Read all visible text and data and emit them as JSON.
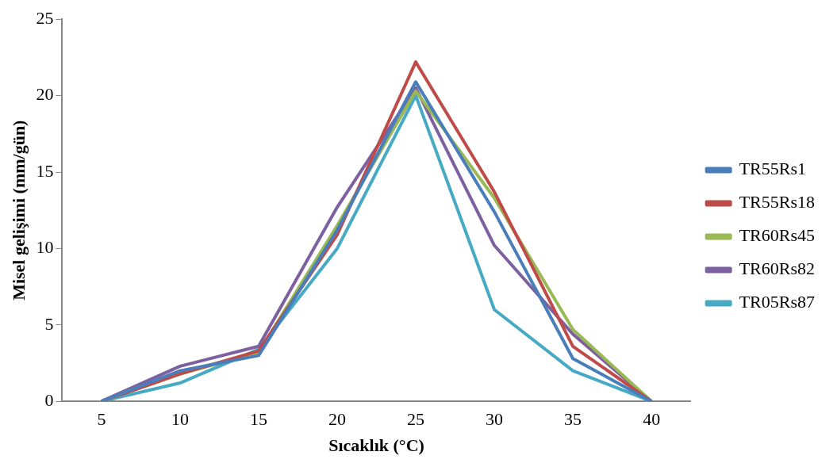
{
  "chart_data": {
    "type": "line",
    "xlabel": "Sıcaklık (°C)",
    "ylabel": "Misel gelişimi (mm/gün)",
    "categories": [
      "5",
      "10",
      "15",
      "20",
      "25",
      "30",
      "35",
      "40"
    ],
    "ylim": [
      0,
      25
    ],
    "yticks": [
      0,
      5,
      10,
      15,
      20,
      25
    ],
    "grid": false,
    "legend": "right",
    "marker": "none",
    "line_style": "solid",
    "series": [
      {
        "name": "TR55Rs1",
        "color": "#4a7ebb",
        "values": [
          0,
          2.0,
          3.0,
          11.2,
          20.9,
          12.4,
          2.8,
          0
        ]
      },
      {
        "name": "TR55Rs18",
        "color": "#be4b48",
        "values": [
          0,
          1.8,
          3.3,
          10.9,
          22.2,
          13.7,
          3.6,
          0
        ]
      },
      {
        "name": "TR60Rs45",
        "color": "#98b954",
        "values": [
          0,
          1.8,
          3.2,
          11.5,
          20.3,
          13.3,
          4.7,
          0
        ]
      },
      {
        "name": "TR60Rs82",
        "color": "#7d60a0",
        "values": [
          0,
          2.3,
          3.6,
          12.7,
          20.5,
          10.2,
          4.4,
          0
        ]
      },
      {
        "name": "TR05Rs87",
        "color": "#46aac5",
        "values": [
          0,
          1.2,
          3.4,
          10.0,
          20.0,
          6.0,
          2.0,
          0
        ]
      }
    ]
  }
}
